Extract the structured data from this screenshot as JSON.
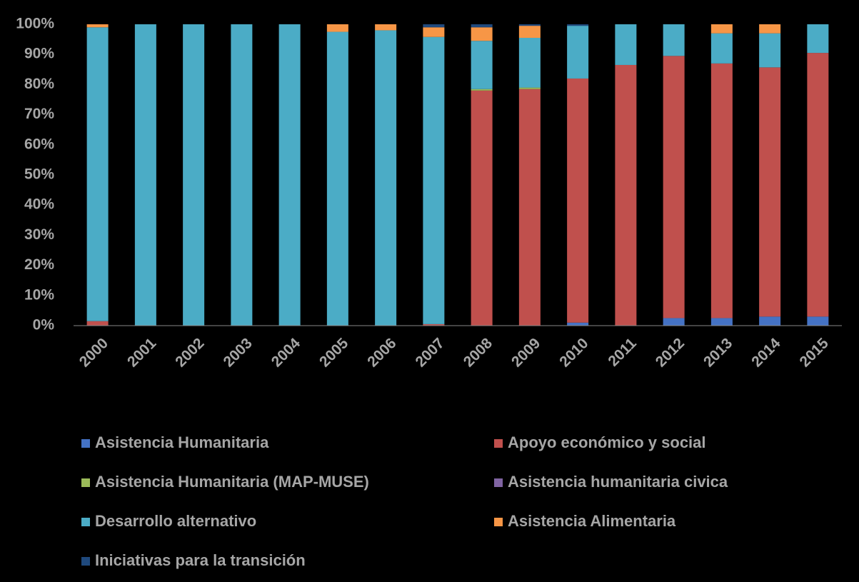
{
  "chart_data": {
    "type": "bar",
    "stacked": true,
    "categories": [
      "2000",
      "2001",
      "2002",
      "2003",
      "2004",
      "2005",
      "2006",
      "2007",
      "2008",
      "2009",
      "2010",
      "2011",
      "2012",
      "2013",
      "2014",
      "2015"
    ],
    "series": [
      {
        "name": "Asistencia Humanitaria",
        "color": "#4472c4",
        "values": [
          0,
          0,
          0,
          0,
          0,
          0,
          0,
          0,
          0,
          0,
          1,
          0,
          2.5,
          2.5,
          3,
          3
        ]
      },
      {
        "name": "Apoyo económico y social",
        "color": "#c0504d",
        "values": [
          1.5,
          0,
          0,
          0,
          0,
          0,
          0,
          0.5,
          78,
          78.5,
          81,
          86.5,
          87,
          84.5,
          82.7,
          87.5
        ]
      },
      {
        "name": "Asistencia Humanitaria (MAP-MUSE)",
        "color": "#9bbb59",
        "values": [
          0,
          0,
          0,
          0,
          0,
          0,
          0,
          0,
          0.5,
          0.5,
          0,
          0,
          0,
          0,
          0,
          0
        ]
      },
      {
        "name": "Asistencia humanitaria civica",
        "color": "#8064a2",
        "values": [
          0,
          0,
          0,
          0,
          0,
          0,
          0,
          0,
          0,
          0,
          0,
          0,
          0,
          0,
          0,
          0
        ]
      },
      {
        "name": "Desarrollo alternativo",
        "color": "#4bacc6",
        "values": [
          97.5,
          100,
          100,
          100,
          100,
          97.5,
          98,
          95.3,
          16,
          16.5,
          17.5,
          13.5,
          10.5,
          10,
          11.3,
          9.5
        ]
      },
      {
        "name": "Asistencia Alimentaria",
        "color": "#f79646",
        "values": [
          1,
          0,
          0,
          0,
          0,
          2.5,
          2,
          3.2,
          4.5,
          4,
          0,
          0,
          0,
          3,
          3,
          0
        ]
      },
      {
        "name": "Iniciativas para la transición",
        "color": "#1f497d",
        "values": [
          0,
          0,
          0,
          0,
          0,
          0,
          0,
          1,
          1,
          0.5,
          0.5,
          0,
          0,
          0,
          0,
          0
        ]
      }
    ],
    "ylim": [
      0,
      100
    ],
    "yticks": [
      {
        "value": 0,
        "label": "0%"
      },
      {
        "value": 10,
        "label": "10%"
      },
      {
        "value": 20,
        "label": "20%"
      },
      {
        "value": 30,
        "label": "30%"
      },
      {
        "value": 40,
        "label": "40%"
      },
      {
        "value": 50,
        "label": "50%"
      },
      {
        "value": 60,
        "label": "60%"
      },
      {
        "value": 70,
        "label": "70%"
      },
      {
        "value": 80,
        "label": "80%"
      },
      {
        "value": 90,
        "label": "90%"
      },
      {
        "value": 100,
        "label": "100%"
      }
    ],
    "grid": false,
    "legend": "bottom"
  }
}
